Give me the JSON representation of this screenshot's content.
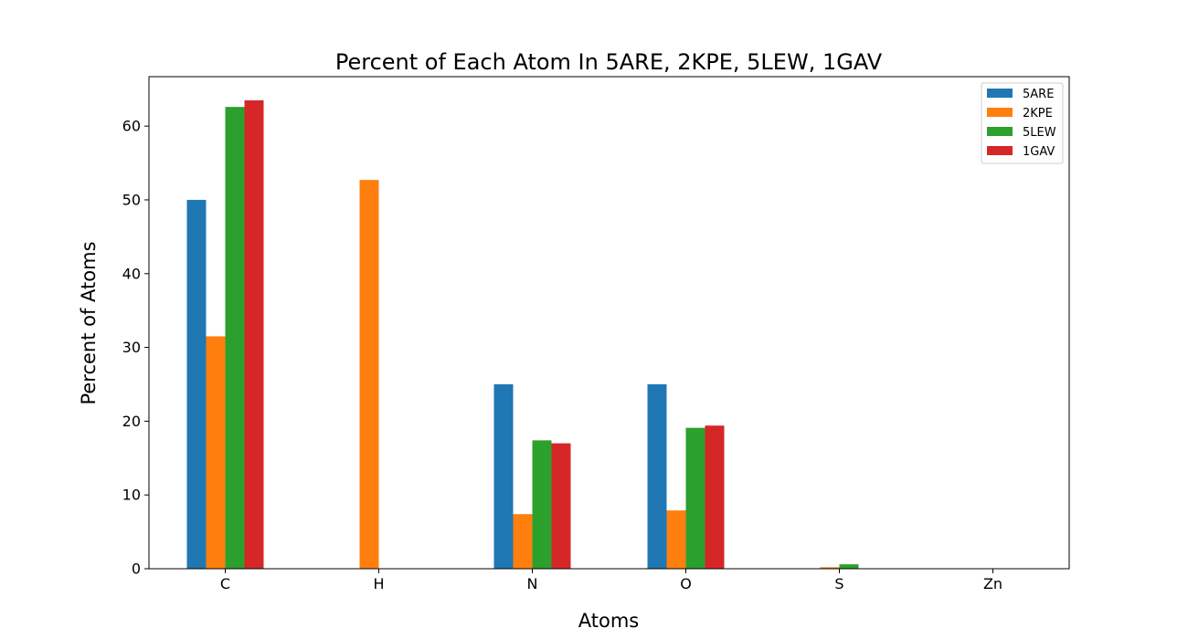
{
  "chart_data": {
    "type": "bar",
    "title": "Percent of Each Atom In 5ARE, 2KPE, 5LEW, 1GAV",
    "xlabel": "Atoms",
    "ylabel": "Percent of Atoms",
    "categories": [
      "C",
      "H",
      "N",
      "O",
      "S",
      "Zn"
    ],
    "ylim": [
      0,
      66.7
    ],
    "yticks": [
      0,
      10,
      20,
      30,
      40,
      50,
      60
    ],
    "grid": false,
    "legend_position": "top-right",
    "series": [
      {
        "name": "5ARE",
        "color": "#1f77b4",
        "values": [
          50.0,
          0,
          25.0,
          25.0,
          0,
          0
        ]
      },
      {
        "name": "2KPE",
        "color": "#ff7f0e",
        "values": [
          31.5,
          52.7,
          7.4,
          7.9,
          0.2,
          0
        ]
      },
      {
        "name": "5LEW",
        "color": "#2ca02c",
        "values": [
          62.6,
          0,
          17.4,
          19.1,
          0.6,
          0
        ]
      },
      {
        "name": "1GAV",
        "color": "#d62728",
        "values": [
          63.5,
          0,
          17.0,
          19.4,
          0,
          0
        ]
      }
    ]
  }
}
